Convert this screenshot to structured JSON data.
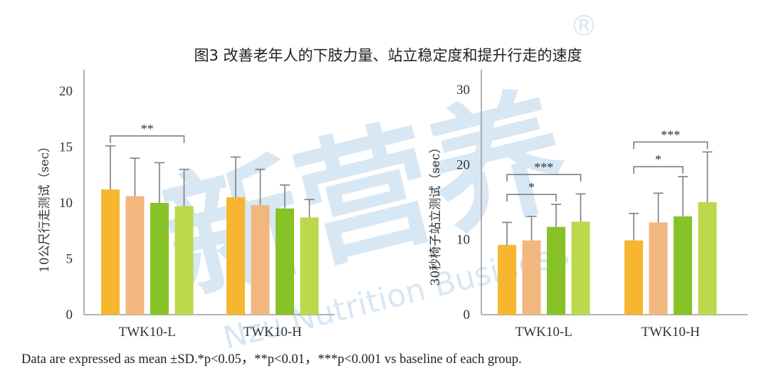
{
  "title": "图3 改善老年人的下肢力量、站立稳定度和提升行走的速度",
  "footnote": "Data are expressed as mean ±SD.*p<0.05，**p<0.01，***p<0.001 vs baseline of each group.",
  "watermark": {
    "brand": "新营养",
    "registered": "®",
    "text": "Nzu Nutrition Business"
  },
  "colors": [
    "#f6b62f",
    "#f2b77f",
    "#87c226",
    "#bcd84d"
  ],
  "chart_data": [
    {
      "type": "bar",
      "ylabel": "10公尺行走测试（sec）",
      "ylim": [
        0,
        20
      ],
      "yticks": [
        0,
        5,
        10,
        15,
        20
      ],
      "categories": [
        "TWK10-L",
        "TWK10-H"
      ],
      "values": [
        [
          11.2,
          10.6,
          10.0,
          9.7
        ],
        [
          10.5,
          9.8,
          9.5,
          8.7
        ]
      ],
      "errors": [
        [
          3.9,
          3.4,
          3.6,
          3.3
        ],
        [
          3.6,
          3.2,
          2.1,
          1.6
        ]
      ],
      "significance": [
        {
          "group": 0,
          "from": 0,
          "to": 3,
          "label": "**"
        }
      ]
    },
    {
      "type": "bar",
      "ylabel": "30秒椅子站立测试（sec）",
      "ylim": [
        0,
        30
      ],
      "yticks": [
        0,
        10,
        20,
        30
      ],
      "categories": [
        "TWK10-L",
        "TWK10-H"
      ],
      "values": [
        [
          9.3,
          9.9,
          11.7,
          12.4
        ],
        [
          9.9,
          12.3,
          13.1,
          15.0
        ]
      ],
      "errors": [
        [
          3.0,
          3.2,
          3.0,
          3.7
        ],
        [
          3.6,
          3.9,
          5.3,
          6.7
        ]
      ],
      "significance": [
        {
          "group": 0,
          "from": 0,
          "to": 2,
          "label": "*"
        },
        {
          "group": 0,
          "from": 0,
          "to": 3,
          "label": "***"
        },
        {
          "group": 1,
          "from": 0,
          "to": 2,
          "label": "*"
        },
        {
          "group": 1,
          "from": 0,
          "to": 3,
          "label": "***"
        }
      ]
    }
  ]
}
